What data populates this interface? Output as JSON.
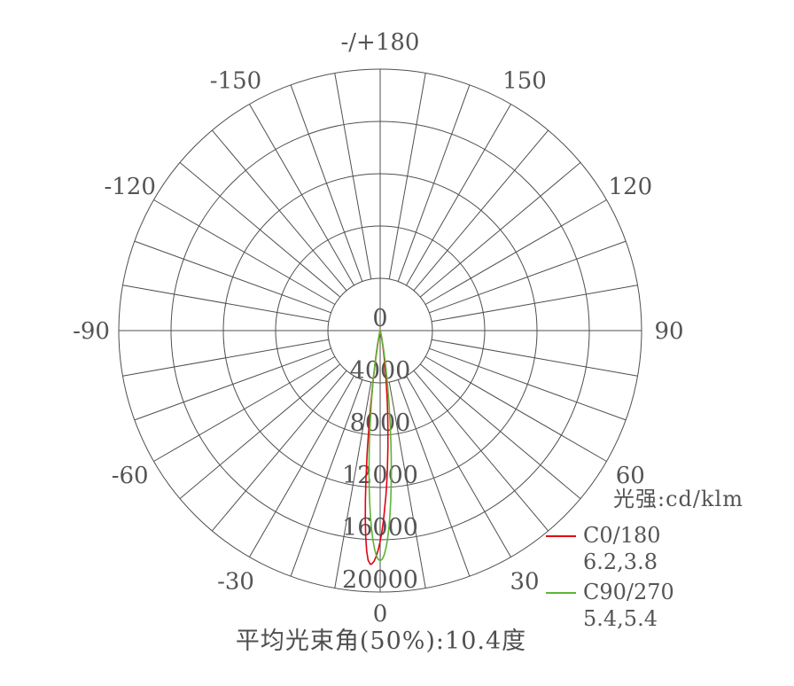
{
  "chart_data": {
    "type": "line",
    "subtype": "polar-photometric",
    "title": "平均光束角(50%):10.4度",
    "unit_label": "光强:cd/klm",
    "grid_color": "#4f4f4f",
    "text_color": "#555555",
    "angle_step_deg": 10,
    "r_axis": {
      "ticks": [
        0,
        4000,
        8000,
        12000,
        16000,
        20000
      ],
      "max": 20000
    },
    "angle_ticks": [
      {
        "deg": 180,
        "label": "-/+180"
      },
      {
        "deg": -150,
        "label": "-150"
      },
      {
        "deg": 150,
        "label": "150"
      },
      {
        "deg": -120,
        "label": "-120"
      },
      {
        "deg": 120,
        "label": "120"
      },
      {
        "deg": -90,
        "label": "-90"
      },
      {
        "deg": 90,
        "label": "90"
      },
      {
        "deg": -60,
        "label": "-60"
      },
      {
        "deg": 60,
        "label": "60"
      },
      {
        "deg": -30,
        "label": "-30"
      },
      {
        "deg": 30,
        "label": "30"
      },
      {
        "deg": 0,
        "label": "0"
      }
    ],
    "series": [
      {
        "name": "C0/180",
        "beam_angles": "6.2,3.8",
        "color": "#e10012",
        "peak_cd_per_klm": 17900,
        "points": [
          [
            -15,
            10
          ],
          [
            -13,
            80
          ],
          [
            -12,
            215
          ],
          [
            -11,
            510
          ],
          [
            -10,
            1120
          ],
          [
            -9,
            2210
          ],
          [
            -8,
            3970
          ],
          [
            -7,
            6480
          ],
          [
            -6.2,
            8950
          ],
          [
            -6,
            9610
          ],
          [
            -5.5,
            11280
          ],
          [
            -5,
            12940
          ],
          [
            -4.5,
            14480
          ],
          [
            -4,
            15840
          ],
          [
            -3.5,
            16890
          ],
          [
            -3,
            17590
          ],
          [
            -2.4,
            17900
          ],
          [
            -2,
            17850
          ],
          [
            -1.5,
            17640
          ],
          [
            -1,
            17270
          ],
          [
            -0.5,
            16770
          ],
          [
            0,
            16130
          ],
          [
            0.5,
            15380
          ],
          [
            1,
            14530
          ],
          [
            2,
            12620
          ],
          [
            2.5,
            11610
          ],
          [
            3,
            10580
          ],
          [
            3.8,
            8950
          ],
          [
            4.5,
            7580
          ],
          [
            5,
            6660
          ],
          [
            5.5,
            5810
          ],
          [
            6,
            5010
          ],
          [
            7,
            3630
          ],
          [
            8,
            2540
          ],
          [
            9,
            1720
          ],
          [
            10,
            1120
          ],
          [
            11,
            700
          ],
          [
            12,
            430
          ],
          [
            13,
            250
          ],
          [
            15,
            80
          ]
        ]
      },
      {
        "name": "C90/270",
        "beam_angles": "5.4,5.4",
        "color": "#5db535",
        "peak_cd_per_klm": 17600,
        "points": [
          [
            -15,
            85
          ],
          [
            -13,
            320
          ],
          [
            -12,
            570
          ],
          [
            -11,
            990
          ],
          [
            -10,
            1630
          ],
          [
            -9,
            2570
          ],
          [
            -8,
            3840
          ],
          [
            -7,
            5490
          ],
          [
            -6,
            7480
          ],
          [
            -5.4,
            8800
          ],
          [
            -5,
            9715
          ],
          [
            -4.5,
            10880
          ],
          [
            -4,
            12030
          ],
          [
            -3.5,
            13150
          ],
          [
            -3,
            14210
          ],
          [
            -2.5,
            15170
          ],
          [
            -2,
            16000
          ],
          [
            -1.5,
            16680
          ],
          [
            -1,
            17190
          ],
          [
            -0.5,
            17500
          ],
          [
            0,
            17600
          ],
          [
            0.5,
            17500
          ],
          [
            1,
            17190
          ],
          [
            1.5,
            16680
          ],
          [
            2,
            16000
          ],
          [
            2.5,
            15170
          ],
          [
            3,
            14210
          ],
          [
            3.5,
            13150
          ],
          [
            4,
            12030
          ],
          [
            4.5,
            10880
          ],
          [
            5,
            9715
          ],
          [
            5.4,
            8800
          ],
          [
            6,
            7480
          ],
          [
            7,
            5490
          ],
          [
            8,
            3840
          ],
          [
            9,
            2570
          ],
          [
            10,
            1630
          ],
          [
            11,
            990
          ],
          [
            12,
            570
          ],
          [
            13,
            320
          ],
          [
            15,
            85
          ]
        ]
      }
    ]
  }
}
